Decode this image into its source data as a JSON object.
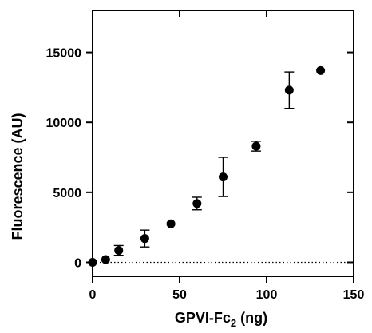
{
  "chart_data": {
    "type": "scatter",
    "title": "",
    "xlabel": {
      "main": "GPVI-Fc",
      "subscript": "2",
      "suffix": " (ng)"
    },
    "ylabel": "Fluorescence (AU)",
    "xlim": [
      0,
      150
    ],
    "ylim": [
      -1000,
      18000
    ],
    "x_ticks": [
      0,
      50,
      100,
      150
    ],
    "x_tick_labels": [
      "0",
      "50",
      "100",
      "150"
    ],
    "y_ticks": [
      0,
      5000,
      10000,
      15000
    ],
    "y_tick_labels": [
      "0",
      "5000",
      "10000",
      "15000"
    ],
    "grid": false,
    "legend": "none",
    "reference_line": {
      "y": 0,
      "style": "dotted"
    },
    "series": [
      {
        "marker": "filled-circle",
        "color": "#000000",
        "x": [
          0,
          7.5,
          15,
          30,
          45,
          60,
          75,
          94,
          113,
          131
        ],
        "y": [
          0,
          200,
          850,
          1700,
          2750,
          4200,
          6100,
          8300,
          12300,
          13700
        ],
        "error": [
          null,
          null,
          350,
          600,
          null,
          450,
          1400,
          350,
          1300,
          null
        ]
      }
    ]
  }
}
